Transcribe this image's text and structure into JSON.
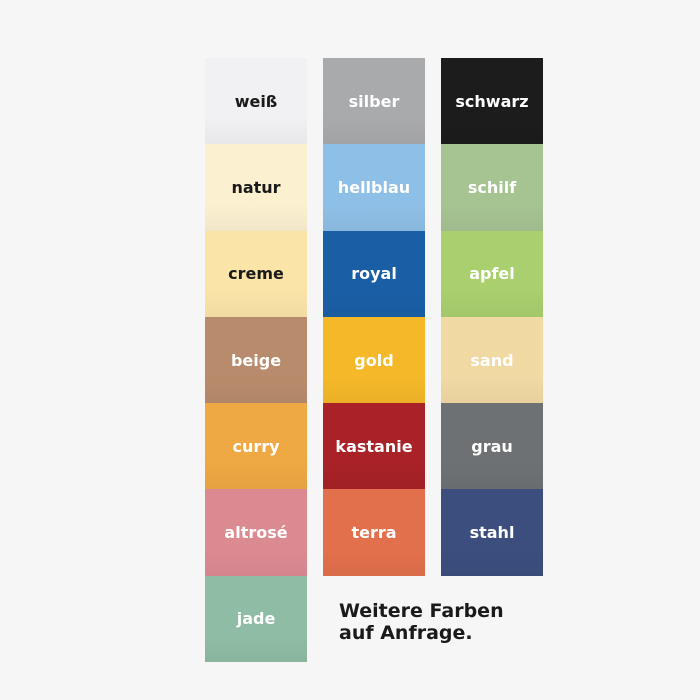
{
  "columns": [
    [
      {
        "label": "weiß",
        "color": "#f1f1f3",
        "text": "dark"
      },
      {
        "label": "natur",
        "color": "#fbf0d0",
        "text": "dark"
      },
      {
        "label": "creme",
        "color": "#fbe4a8",
        "text": "dark"
      },
      {
        "label": "beige",
        "color": "#b88b6c",
        "text": "light"
      },
      {
        "label": "curry",
        "color": "#eea844",
        "text": "light"
      },
      {
        "label": "altrosé",
        "color": "#dc8a92",
        "text": "light"
      },
      {
        "label": "jade",
        "color": "#8fbca4",
        "text": "light"
      }
    ],
    [
      {
        "label": "silber",
        "color": "#a9aaac",
        "text": "light"
      },
      {
        "label": "hellblau",
        "color": "#8ebfe6",
        "text": "light"
      },
      {
        "label": "royal",
        "color": "#1a5fa6",
        "text": "light"
      },
      {
        "label": "gold",
        "color": "#f4b829",
        "text": "light"
      },
      {
        "label": "kastanie",
        "color": "#a82227",
        "text": "light"
      },
      {
        "label": "terra",
        "color": "#e2704c",
        "text": "light"
      }
    ],
    [
      {
        "label": "schwarz",
        "color": "#1c1c1c",
        "text": "light"
      },
      {
        "label": "schilf",
        "color": "#a6c392",
        "text": "light"
      },
      {
        "label": "apfel",
        "color": "#a9cf6e",
        "text": "light"
      },
      {
        "label": "sand",
        "color": "#f1d9a4",
        "text": "light"
      },
      {
        "label": "grau",
        "color": "#6d7173",
        "text": "light"
      },
      {
        "label": "stahl",
        "color": "#3b4e7e",
        "text": "light"
      }
    ]
  ],
  "note": {
    "line1": "Weitere Farben",
    "line2": "auf Anfrage."
  }
}
